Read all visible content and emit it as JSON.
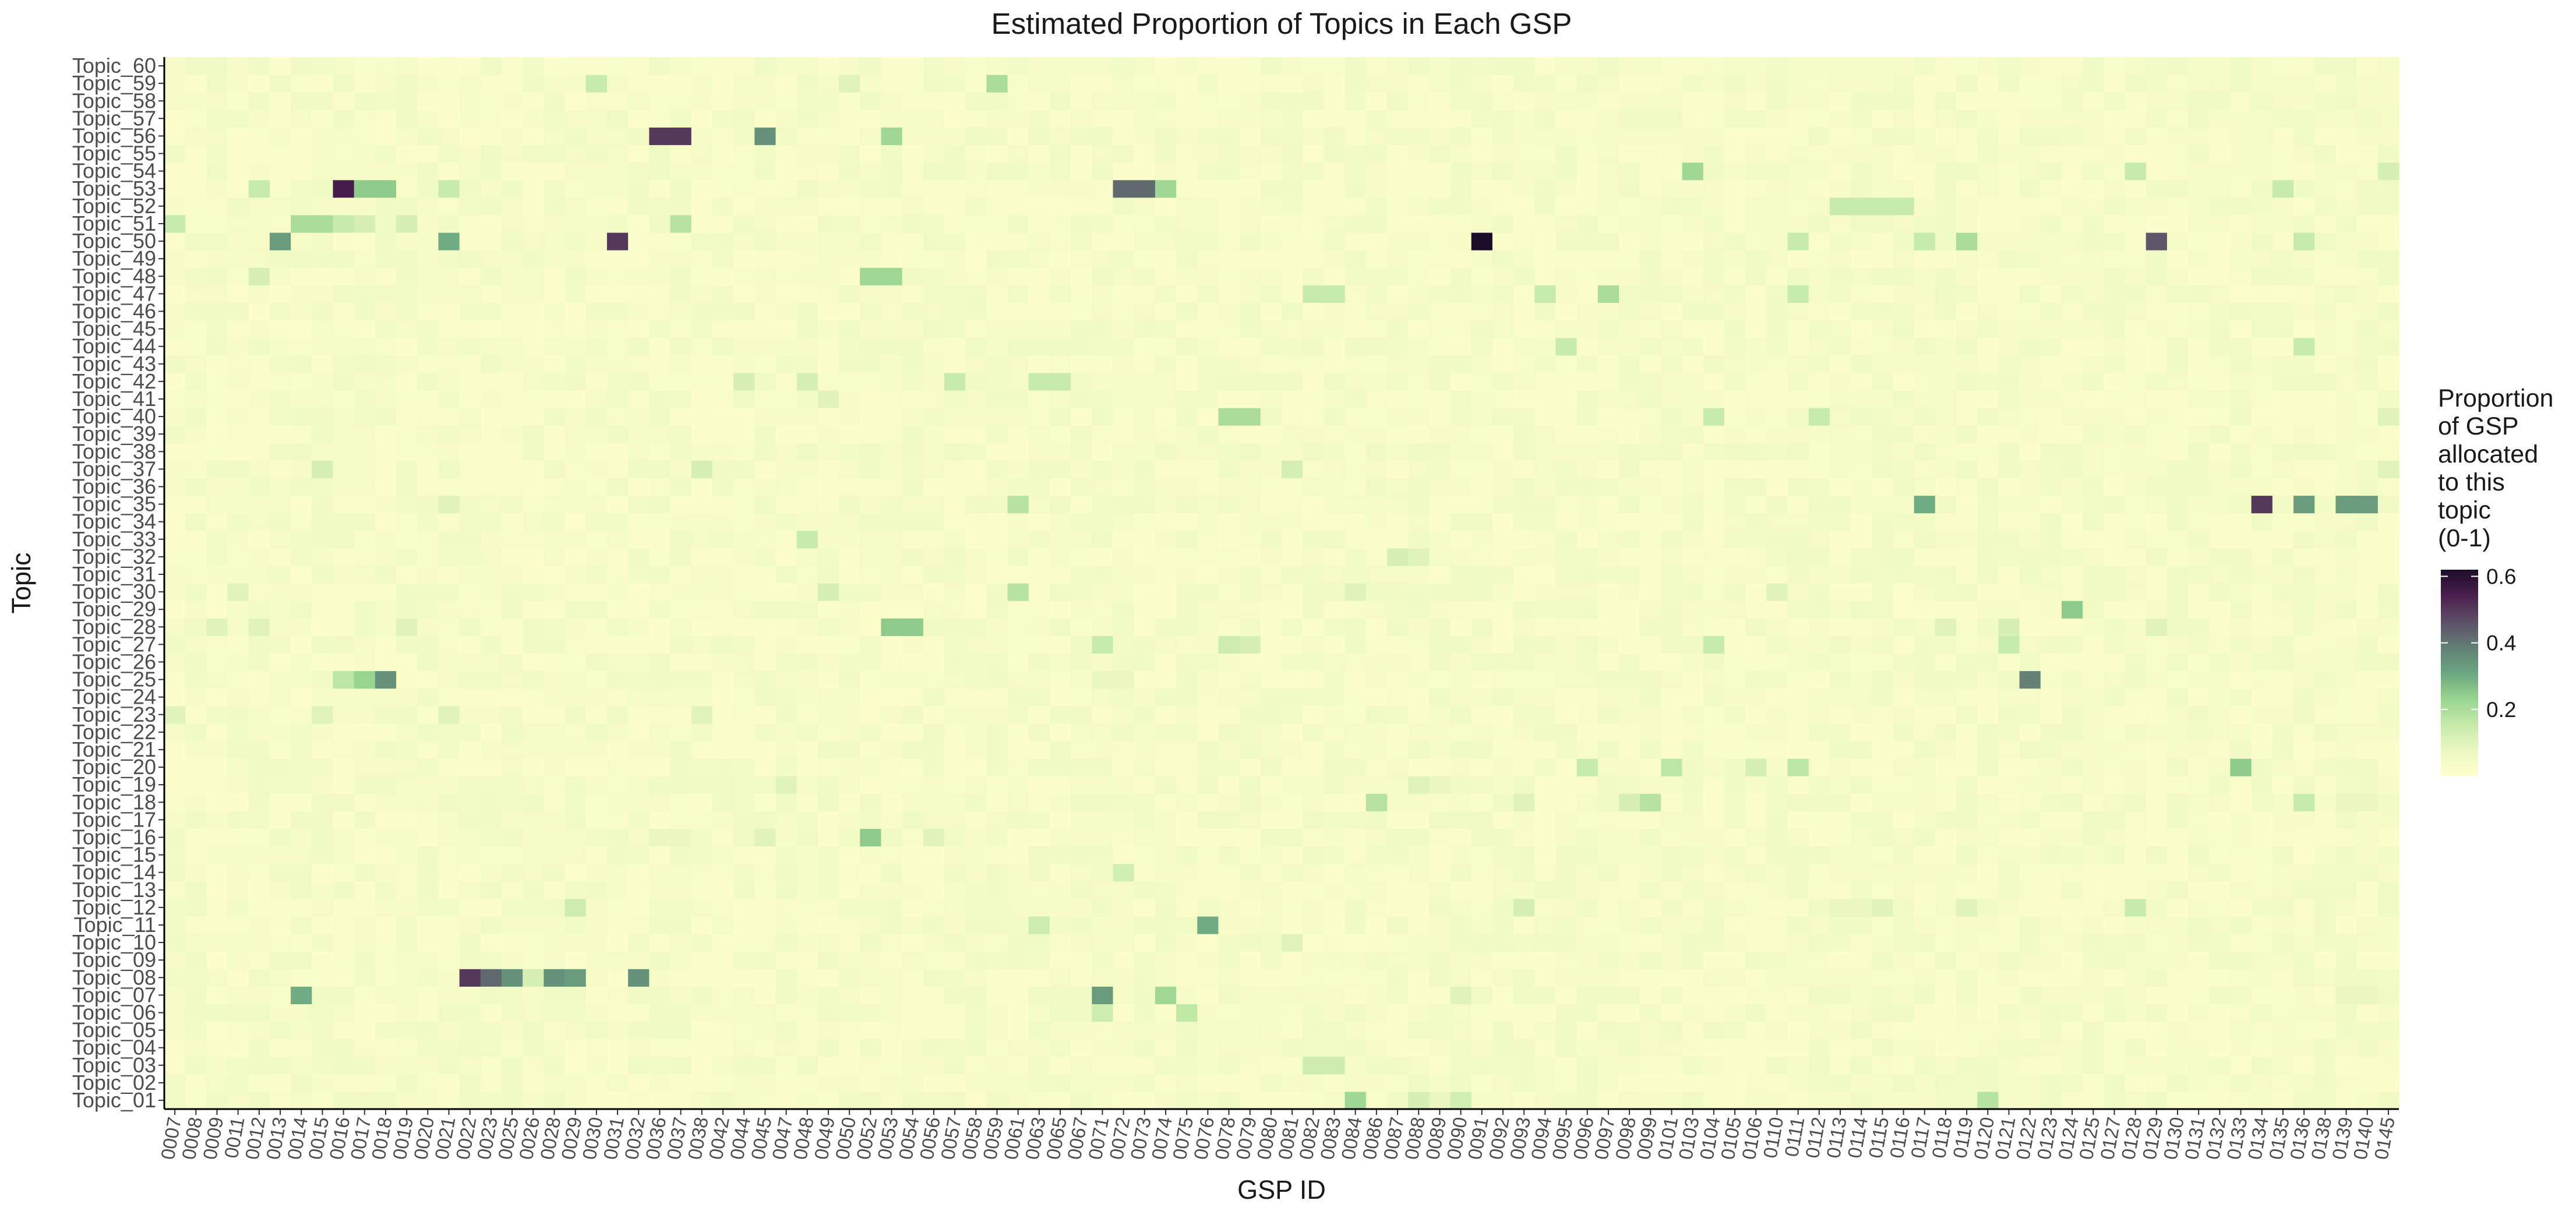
{
  "chart_data": {
    "type": "heatmap",
    "title": "Estimated Proportion of Topics in Each GSP",
    "xlabel": "GSP ID",
    "ylabel": "Topic",
    "x": [
      "0007",
      "0008",
      "0009",
      "0011",
      "0012",
      "0013",
      "0014",
      "0015",
      "0016",
      "0017",
      "0018",
      "0019",
      "0020",
      "0021",
      "0022",
      "0023",
      "0025",
      "0026",
      "0028",
      "0029",
      "0030",
      "0031",
      "0032",
      "0036",
      "0037",
      "0038",
      "0042",
      "0044",
      "0045",
      "0047",
      "0048",
      "0049",
      "0050",
      "0052",
      "0053",
      "0054",
      "0056",
      "0057",
      "0058",
      "0059",
      "0061",
      "0063",
      "0065",
      "0067",
      "0071",
      "0072",
      "0073",
      "0074",
      "0075",
      "0076",
      "0078",
      "0079",
      "0080",
      "0081",
      "0082",
      "0083",
      "0084",
      "0086",
      "0087",
      "0088",
      "0089",
      "0090",
      "0091",
      "0092",
      "0093",
      "0094",
      "0095",
      "0096",
      "0097",
      "0098",
      "0099",
      "0101",
      "0103",
      "0104",
      "0105",
      "0106",
      "0110",
      "0111",
      "0112",
      "0113",
      "0114",
      "0115",
      "0116",
      "0117",
      "0118",
      "0119",
      "0120",
      "0121",
      "0122",
      "0123",
      "0124",
      "0125",
      "0127",
      "0128",
      "0129",
      "0130",
      "0131",
      "0132",
      "0133",
      "0134",
      "0135",
      "0136",
      "0138",
      "0139",
      "0140",
      "0145"
    ],
    "y": [
      "Topic_01",
      "Topic_02",
      "Topic_03",
      "Topic_04",
      "Topic_05",
      "Topic_06",
      "Topic_07",
      "Topic_08",
      "Topic_09",
      "Topic_10",
      "Topic_11",
      "Topic_12",
      "Topic_13",
      "Topic_14",
      "Topic_15",
      "Topic_16",
      "Topic_17",
      "Topic_18",
      "Topic_19",
      "Topic_20",
      "Topic_21",
      "Topic_22",
      "Topic_23",
      "Topic_24",
      "Topic_25",
      "Topic_26",
      "Topic_27",
      "Topic_28",
      "Topic_29",
      "Topic_30",
      "Topic_31",
      "Topic_32",
      "Topic_33",
      "Topic_34",
      "Topic_35",
      "Topic_36",
      "Topic_37",
      "Topic_38",
      "Topic_39",
      "Topic_40",
      "Topic_41",
      "Topic_42",
      "Topic_43",
      "Topic_44",
      "Topic_45",
      "Topic_46",
      "Topic_47",
      "Topic_48",
      "Topic_49",
      "Topic_50",
      "Topic_51",
      "Topic_52",
      "Topic_53",
      "Topic_54",
      "Topic_55",
      "Topic_56",
      "Topic_57",
      "Topic_58",
      "Topic_59",
      "Topic_60"
    ],
    "background_value": 0.01,
    "values": [
      [
        "0084",
        "Topic_01",
        0.22
      ],
      [
        "0088",
        "Topic_01",
        0.12
      ],
      [
        "0090",
        "Topic_01",
        0.13
      ],
      [
        "0089",
        "Topic_01",
        0.08
      ],
      [
        "0120",
        "Topic_01",
        0.18
      ],
      [
        "0082",
        "Topic_03",
        0.14
      ],
      [
        "0083",
        "Topic_03",
        0.14
      ],
      [
        "0075",
        "Topic_06",
        0.16
      ],
      [
        "0071",
        "Topic_06",
        0.14
      ],
      [
        "0014",
        "Topic_07",
        0.3
      ],
      [
        "0071",
        "Topic_07",
        0.33
      ],
      [
        "0074",
        "Topic_07",
        0.22
      ],
      [
        "0090",
        "Topic_07",
        0.1
      ],
      [
        "0139",
        "Topic_07",
        0.08
      ],
      [
        "0140",
        "Topic_07",
        0.08
      ],
      [
        "0022",
        "Topic_08",
        0.5
      ],
      [
        "0023",
        "Topic_08",
        0.42
      ],
      [
        "0025",
        "Topic_08",
        0.35
      ],
      [
        "0026",
        "Topic_08",
        0.12
      ],
      [
        "0028",
        "Topic_08",
        0.35
      ],
      [
        "0029",
        "Topic_08",
        0.33
      ],
      [
        "0032",
        "Topic_08",
        0.35
      ],
      [
        "0081",
        "Topic_10",
        0.1
      ],
      [
        "0076",
        "Topic_11",
        0.3
      ],
      [
        "0063",
        "Topic_11",
        0.14
      ],
      [
        "0029",
        "Topic_12",
        0.14
      ],
      [
        "0093",
        "Topic_12",
        0.12
      ],
      [
        "0113",
        "Topic_12",
        0.08
      ],
      [
        "0114",
        "Topic_12",
        0.08
      ],
      [
        "0115",
        "Topic_12",
        0.1
      ],
      [
        "0119",
        "Topic_12",
        0.1
      ],
      [
        "0128",
        "Topic_12",
        0.15
      ],
      [
        "0072",
        "Topic_14",
        0.13
      ],
      [
        "0036",
        "Topic_16",
        0.08
      ],
      [
        "0037",
        "Topic_16",
        0.08
      ],
      [
        "0045",
        "Topic_16",
        0.1
      ],
      [
        "0052",
        "Topic_16",
        0.25
      ],
      [
        "0056",
        "Topic_16",
        0.1
      ],
      [
        "0086",
        "Topic_18",
        0.18
      ],
      [
        "0093",
        "Topic_18",
        0.1
      ],
      [
        "0099",
        "Topic_18",
        0.18
      ],
      [
        "0098",
        "Topic_18",
        0.12
      ],
      [
        "0136",
        "Topic_18",
        0.15
      ],
      [
        "0139",
        "Topic_18",
        0.08
      ],
      [
        "0140",
        "Topic_18",
        0.08
      ],
      [
        "0047",
        "Topic_19",
        0.1
      ],
      [
        "0088",
        "Topic_19",
        0.1
      ],
      [
        "0089",
        "Topic_19",
        0.08
      ],
      [
        "0096",
        "Topic_20",
        0.15
      ],
      [
        "0101",
        "Topic_20",
        0.17
      ],
      [
        "0106",
        "Topic_20",
        0.12
      ],
      [
        "0111",
        "Topic_20",
        0.17
      ],
      [
        "0133",
        "Topic_20",
        0.25
      ],
      [
        "0007",
        "Topic_23",
        0.1
      ],
      [
        "0015",
        "Topic_23",
        0.1
      ],
      [
        "0021",
        "Topic_23",
        0.1
      ],
      [
        "0038",
        "Topic_23",
        0.1
      ],
      [
        "0016",
        "Topic_25",
        0.17
      ],
      [
        "0017",
        "Topic_25",
        0.23
      ],
      [
        "0018",
        "Topic_25",
        0.35
      ],
      [
        "0071",
        "Topic_25",
        0.08
      ],
      [
        "0072",
        "Topic_25",
        0.08
      ],
      [
        "0122",
        "Topic_25",
        0.38
      ],
      [
        "0071",
        "Topic_27",
        0.15
      ],
      [
        "0078",
        "Topic_27",
        0.14
      ],
      [
        "0079",
        "Topic_27",
        0.12
      ],
      [
        "0104",
        "Topic_27",
        0.15
      ],
      [
        "0121",
        "Topic_27",
        0.15
      ],
      [
        "0053",
        "Topic_28",
        0.25
      ],
      [
        "0054",
        "Topic_28",
        0.25
      ],
      [
        "0009",
        "Topic_28",
        0.1
      ],
      [
        "0012",
        "Topic_28",
        0.1
      ],
      [
        "0019",
        "Topic_28",
        0.1
      ],
      [
        "0118",
        "Topic_28",
        0.1
      ],
      [
        "0121",
        "Topic_28",
        0.12
      ],
      [
        "0129",
        "Topic_28",
        0.1
      ],
      [
        "0124",
        "Topic_29",
        0.25
      ],
      [
        "0061",
        "Topic_30",
        0.18
      ],
      [
        "0049",
        "Topic_30",
        0.12
      ],
      [
        "0011",
        "Topic_30",
        0.1
      ],
      [
        "0084",
        "Topic_30",
        0.1
      ],
      [
        "0110",
        "Topic_30",
        0.1
      ],
      [
        "0087",
        "Topic_32",
        0.12
      ],
      [
        "0088",
        "Topic_32",
        0.1
      ],
      [
        "0048",
        "Topic_33",
        0.15
      ],
      [
        "0061",
        "Topic_35",
        0.18
      ],
      [
        "0117",
        "Topic_35",
        0.3
      ],
      [
        "0134",
        "Topic_35",
        0.5
      ],
      [
        "0136",
        "Topic_35",
        0.33
      ],
      [
        "0139",
        "Topic_35",
        0.33
      ],
      [
        "0140",
        "Topic_35",
        0.33
      ],
      [
        "0021",
        "Topic_35",
        0.1
      ],
      [
        "0015",
        "Topic_37",
        0.12
      ],
      [
        "0038",
        "Topic_37",
        0.12
      ],
      [
        "0081",
        "Topic_37",
        0.12
      ],
      [
        "0145",
        "Topic_37",
        0.1
      ],
      [
        "0078",
        "Topic_40",
        0.2
      ],
      [
        "0079",
        "Topic_40",
        0.2
      ],
      [
        "0104",
        "Topic_40",
        0.15
      ],
      [
        "0112",
        "Topic_40",
        0.15
      ],
      [
        "0145",
        "Topic_40",
        0.1
      ],
      [
        "0049",
        "Topic_41",
        0.1
      ],
      [
        "0044",
        "Topic_42",
        0.12
      ],
      [
        "0048",
        "Topic_42",
        0.12
      ],
      [
        "0057",
        "Topic_42",
        0.15
      ],
      [
        "0063",
        "Topic_42",
        0.15
      ],
      [
        "0065",
        "Topic_42",
        0.15
      ],
      [
        "0095",
        "Topic_44",
        0.15
      ],
      [
        "0136",
        "Topic_44",
        0.15
      ],
      [
        "0082",
        "Topic_47",
        0.15
      ],
      [
        "0083",
        "Topic_47",
        0.15
      ],
      [
        "0094",
        "Topic_47",
        0.15
      ],
      [
        "0097",
        "Topic_47",
        0.2
      ],
      [
        "0111",
        "Topic_47",
        0.15
      ],
      [
        "0052",
        "Topic_48",
        0.22
      ],
      [
        "0053",
        "Topic_48",
        0.22
      ],
      [
        "0012",
        "Topic_48",
        0.12
      ],
      [
        "0013",
        "Topic_50",
        0.33
      ],
      [
        "0021",
        "Topic_50",
        0.3
      ],
      [
        "0031",
        "Topic_50",
        0.5
      ],
      [
        "0091",
        "Topic_50",
        0.62
      ],
      [
        "0111",
        "Topic_50",
        0.15
      ],
      [
        "0117",
        "Topic_50",
        0.15
      ],
      [
        "0119",
        "Topic_50",
        0.2
      ],
      [
        "0129",
        "Topic_50",
        0.45
      ],
      [
        "0136",
        "Topic_50",
        0.15
      ],
      [
        "0007",
        "Topic_51",
        0.15
      ],
      [
        "0014",
        "Topic_51",
        0.2
      ],
      [
        "0015",
        "Topic_51",
        0.2
      ],
      [
        "0017",
        "Topic_51",
        0.12
      ],
      [
        "0019",
        "Topic_51",
        0.12
      ],
      [
        "0037",
        "Topic_51",
        0.18
      ],
      [
        "0016",
        "Topic_51",
        0.15
      ],
      [
        "0113",
        "Topic_52",
        0.15
      ],
      [
        "0114",
        "Topic_52",
        0.15
      ],
      [
        "0115",
        "Topic_52",
        0.15
      ],
      [
        "0116",
        "Topic_52",
        0.15
      ],
      [
        "0012",
        "Topic_53",
        0.15
      ],
      [
        "0016",
        "Topic_53",
        0.55
      ],
      [
        "0017",
        "Topic_53",
        0.25
      ],
      [
        "0018",
        "Topic_53",
        0.25
      ],
      [
        "0021",
        "Topic_53",
        0.15
      ],
      [
        "0072",
        "Topic_53",
        0.42
      ],
      [
        "0073",
        "Topic_53",
        0.42
      ],
      [
        "0074",
        "Topic_53",
        0.22
      ],
      [
        "0135",
        "Topic_53",
        0.15
      ],
      [
        "0103",
        "Topic_54",
        0.22
      ],
      [
        "0128",
        "Topic_54",
        0.15
      ],
      [
        "0145",
        "Topic_54",
        0.12
      ],
      [
        "0036",
        "Topic_56",
        0.5
      ],
      [
        "0037",
        "Topic_56",
        0.5
      ],
      [
        "0045",
        "Topic_56",
        0.35
      ],
      [
        "0053",
        "Topic_56",
        0.22
      ],
      [
        "0030",
        "Topic_59",
        0.15
      ],
      [
        "0050",
        "Topic_59",
        0.1
      ],
      [
        "0059",
        "Topic_59",
        0.2
      ]
    ],
    "legend": {
      "title": [
        "Proportion",
        "of GSP",
        "allocated",
        "to this",
        "topic",
        "(0-1)"
      ],
      "ticks": [
        0.2,
        0.4,
        0.6
      ],
      "tick_labels": [
        "0.2",
        "0.4",
        "0.6"
      ],
      "range": [
        0,
        0.62
      ],
      "placement": "right"
    },
    "colors": [
      "#ffffcc",
      "#ebf8c0",
      "#c4eaa8",
      "#98d490",
      "#6aa680",
      "#627e74",
      "#5e4e66",
      "#4b1f4e",
      "#1b0d29"
    ],
    "grid": false
  }
}
